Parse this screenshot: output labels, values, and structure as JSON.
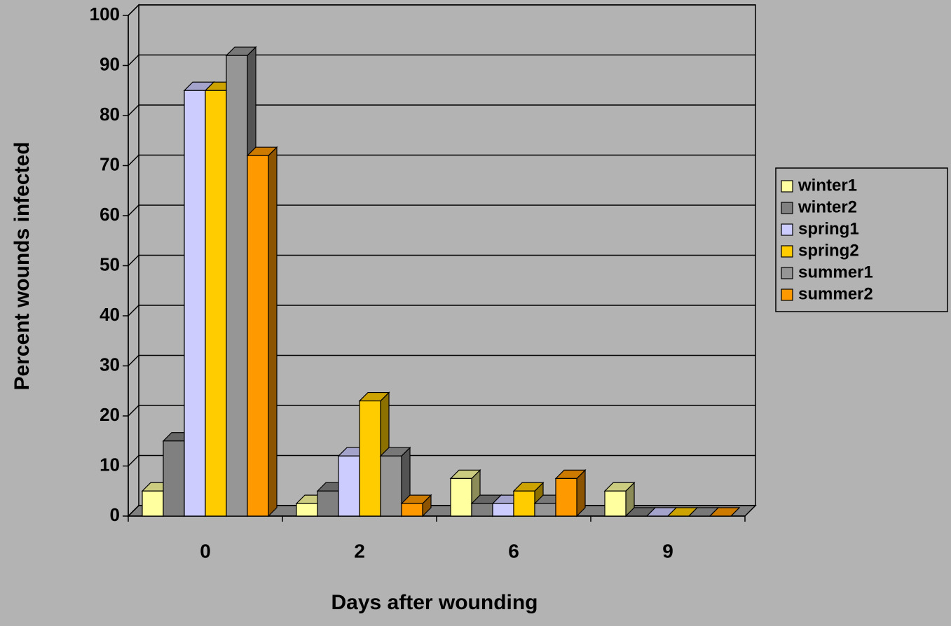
{
  "chart_data": {
    "type": "bar3d",
    "x_label": "Days after wounding",
    "y_label": "Percent wounds infected",
    "categories": [
      "0",
      "2",
      "6",
      "9"
    ],
    "series": [
      {
        "name": "winter1",
        "color": "#ffffa0",
        "values": [
          5,
          2.5,
          7.5,
          5
        ]
      },
      {
        "name": "winter2",
        "color": "#808080",
        "values": [
          15,
          5,
          2.5,
          0
        ]
      },
      {
        "name": "spring1",
        "color": "#ccccff",
        "values": [
          85,
          12,
          2.5,
          0
        ]
      },
      {
        "name": "spring2",
        "color": "#ffcc00",
        "values": [
          85,
          23,
          5,
          0
        ]
      },
      {
        "name": "summer1",
        "color": "#969696",
        "values": [
          92,
          12,
          2.5,
          0
        ]
      },
      {
        "name": "summer2",
        "color": "#ff9900",
        "values": [
          72,
          2.5,
          7.5,
          0
        ]
      }
    ],
    "ylim": [
      0,
      100
    ],
    "yticks": [
      0,
      10,
      20,
      30,
      40,
      50,
      60,
      70,
      80,
      90,
      100
    ],
    "grid": true,
    "legend": "right"
  }
}
